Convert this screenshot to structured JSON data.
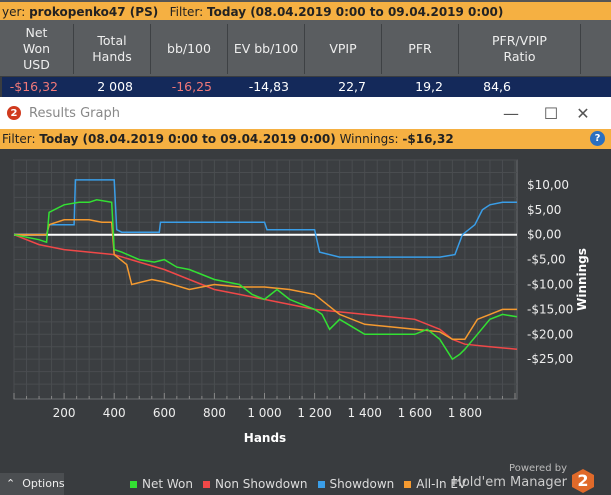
{
  "top_filter": {
    "prefix": "yer: ",
    "player": "prokopenko47 (PS)",
    "filter_label": "Filter:",
    "filter_value": "Today (08.04.2019 0:00 to 09.04.2019 0:00)"
  },
  "table": {
    "columns": [
      "Net\nWon\nUSD",
      "Total\nHands",
      "bb/100",
      "EV bb/100",
      "VPIP",
      "PFR",
      "PFR/VPIP\nRatio"
    ],
    "row": [
      "-$16,32",
      "2 008",
      "-16,25",
      "-14,83",
      "22,7",
      "19,2",
      "84,6"
    ]
  },
  "window": {
    "title": "Results Graph",
    "minimize": "—",
    "maximize": "☐",
    "close": "✕"
  },
  "graph_filter": {
    "label": "Filter:",
    "value": "Today (08.04.2019 0:00 to 09.04.2019 0:00)",
    "winnings_label": "Winnings:",
    "winnings_value": "-$16,32"
  },
  "help_icon": "?",
  "options_label": "Options",
  "powered": {
    "line1": "Powered by",
    "line2": "Hold'em Manager",
    "logo": "2"
  },
  "chart_data": {
    "type": "line",
    "xlabel": "Hands",
    "ylabel": "Winnings",
    "xlim": [
      0,
      2008
    ],
    "ylim": [
      -33,
      15
    ],
    "xticks": [
      200,
      400,
      600,
      800,
      1000,
      1200,
      1400,
      1600,
      1800
    ],
    "xtick_labels": [
      "200",
      "400",
      "600",
      "800",
      "1 000",
      "1 200",
      "1 400",
      "1 600",
      "1 800"
    ],
    "yticks": [
      10,
      5,
      0,
      -5,
      -10,
      -15,
      -20,
      -25
    ],
    "ytick_labels": [
      "$10,00",
      "$5,00",
      "$0,00",
      "-$5,00",
      "-$10,00",
      "-$15,00",
      "-$20,00",
      "-$25,00"
    ],
    "grid": true,
    "legend_placement": "bottom",
    "series": [
      {
        "name": "Net Won",
        "color": "#33e033",
        "x": [
          0,
          100,
          130,
          140,
          200,
          260,
          300,
          330,
          390,
          400,
          430,
          500,
          560,
          600,
          650,
          700,
          750,
          800,
          850,
          900,
          950,
          1000,
          1050,
          1100,
          1150,
          1200,
          1230,
          1260,
          1300,
          1350,
          1400,
          1500,
          1600,
          1650,
          1700,
          1750,
          1780,
          1800,
          1850,
          1900,
          1950,
          2008
        ],
        "y": [
          0,
          -1,
          -1.5,
          4.5,
          6,
          6.5,
          6.5,
          7,
          6.5,
          -3,
          -3.5,
          -5,
          -5.5,
          -5,
          -6.5,
          -7,
          -8,
          -9,
          -9.5,
          -10,
          -12,
          -13,
          -11,
          -13,
          -14,
          -15,
          -16,
          -19,
          -17,
          -18.5,
          -20,
          -20,
          -20,
          -19,
          -21,
          -25,
          -24,
          -23,
          -20,
          -17,
          -16,
          -16.5
        ]
      },
      {
        "name": "Non Showdown",
        "color": "#f04848",
        "x": [
          0,
          100,
          200,
          300,
          400,
          500,
          600,
          700,
          800,
          900,
          1000,
          1100,
          1200,
          1300,
          1400,
          1500,
          1600,
          1700,
          1750,
          1800,
          1900,
          2008
        ],
        "y": [
          0,
          -2,
          -3,
          -3.5,
          -4,
          -5.5,
          -7,
          -9,
          -11,
          -12,
          -13,
          -14,
          -15,
          -15.5,
          -16,
          -16.5,
          -17,
          -19,
          -21,
          -22,
          -22.5,
          -23
        ]
      },
      {
        "name": "Showdown",
        "color": "#3a9ee8",
        "x": [
          0,
          130,
          140,
          240,
          245,
          400,
          410,
          430,
          580,
          585,
          1000,
          1010,
          1200,
          1220,
          1300,
          1700,
          1760,
          1790,
          1840,
          1870,
          1900,
          1950,
          2008
        ],
        "y": [
          0,
          0,
          2,
          2,
          11,
          11,
          1,
          0.5,
          0.5,
          2.5,
          2.5,
          1,
          1,
          -3.5,
          -4.5,
          -4.5,
          -4,
          0,
          2,
          5,
          6,
          6.5,
          6.5
        ]
      },
      {
        "name": "All-In EV",
        "color": "#f59a30",
        "x": [
          0,
          130,
          140,
          200,
          300,
          350,
          390,
          400,
          450,
          470,
          550,
          600,
          700,
          800,
          900,
          1000,
          1100,
          1200,
          1250,
          1300,
          1400,
          1500,
          1600,
          1700,
          1750,
          1800,
          1850,
          1900,
          1950,
          2008
        ],
        "y": [
          0,
          0,
          2,
          3,
          3,
          2.5,
          2.5,
          -4,
          -6,
          -10,
          -9,
          -9.5,
          -11,
          -10,
          -10.5,
          -10.5,
          -11,
          -12,
          -14,
          -16,
          -18,
          -18.5,
          -19,
          -19.5,
          -21,
          -21,
          -17,
          -16,
          -15,
          -15
        ]
      }
    ]
  }
}
